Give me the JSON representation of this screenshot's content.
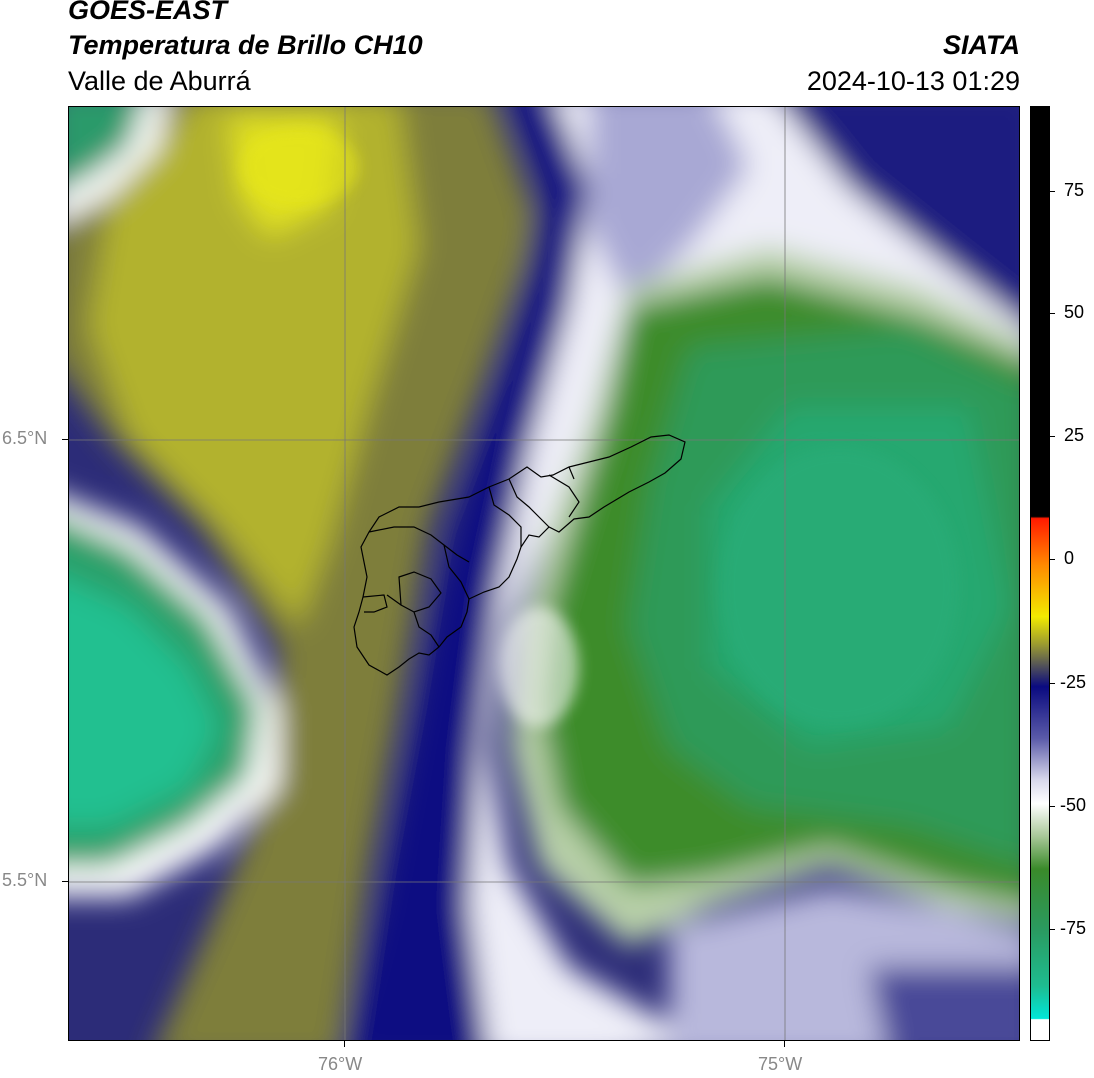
{
  "header": {
    "line1": "GOES-EAST",
    "line2": "Temperatura de Brillo CH10",
    "region": "Valle de Aburrá",
    "organization": "SIATA",
    "timestamp": "2024-10-13 01:29"
  },
  "axes": {
    "lat_labels": [
      "6.5°N",
      "5.5°N"
    ],
    "lon_labels": [
      "76°W",
      "75°W"
    ]
  },
  "colorbar": {
    "tick_labels": [
      "75",
      "50",
      "25",
      "0",
      "-25",
      "-50",
      "-75"
    ],
    "colors": {
      "black": "#000000",
      "red": "#ff2200",
      "orange": "#ff8800",
      "yellow": "#f0e800",
      "olive": "#8a8a30",
      "navy": "#0a0a80",
      "lavender": "#b0b0d8",
      "white": "#ffffff",
      "green": "#3a8a2a",
      "teal": "#20b080",
      "cyan": "#00e0d0"
    }
  }
}
